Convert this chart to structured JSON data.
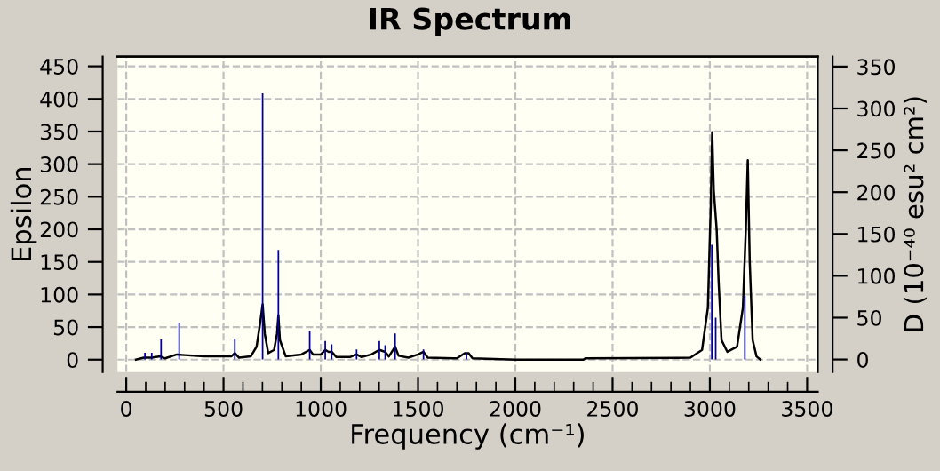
{
  "chart_data": {
    "type": "line",
    "title": "IR Spectrum",
    "xlabel": "Frequency (cm⁻¹)",
    "ylabel": "Epsilon",
    "y2label": "D (10⁻⁴⁰ esu² cm²)",
    "xlim": [
      -45,
      3555
    ],
    "ylim": [
      -19,
      465
    ],
    "y2lim": [
      -15,
      362
    ],
    "xticks": [
      0,
      {
        "value": 100,
        "label": null
      },
      {
        "value": 200,
        "label": null
      },
      {
        "value": 300,
        "label": null
      },
      {
        "value": 400,
        "label": null
      },
      500,
      {
        "value": 600,
        "label": null
      },
      {
        "value": 700,
        "label": null
      },
      {
        "value": 800,
        "label": null
      },
      {
        "value": 900,
        "label": null
      },
      1000,
      {
        "value": 1100,
        "label": null
      },
      {
        "value": 1200,
        "label": null
      },
      {
        "value": 1300,
        "label": null
      },
      {
        "value": 1400,
        "label": null
      },
      1500,
      {
        "value": 1600,
        "label": null
      },
      {
        "value": 1700,
        "label": null
      },
      {
        "value": 1800,
        "label": null
      },
      {
        "value": 1900,
        "label": null
      },
      2000,
      {
        "value": 2100,
        "label": null
      },
      {
        "value": 2200,
        "label": null
      },
      {
        "value": 2300,
        "label": null
      },
      {
        "value": 2400,
        "label": null
      },
      2500,
      {
        "value": 2600,
        "label": null
      },
      {
        "value": 2700,
        "label": null
      },
      {
        "value": 2800,
        "label": null
      },
      {
        "value": 2900,
        "label": null
      },
      3000,
      {
        "value": 3100,
        "label": null
      },
      {
        "value": 3200,
        "label": null
      },
      {
        "value": 3300,
        "label": null
      },
      {
        "value": 3400,
        "label": null
      },
      3500
    ],
    "yticks": [
      0,
      50,
      100,
      150,
      200,
      250,
      300,
      350,
      400,
      450
    ],
    "y2ticks": [
      0,
      50,
      100,
      150,
      200,
      250,
      300,
      350
    ],
    "grid": true,
    "series": [
      {
        "color": "#000000",
        "x": [
          50,
          90,
          130,
          175,
          200,
          260,
          300,
          400,
          540,
          558,
          580,
          640,
          670,
          690,
          701,
          712,
          730,
          760,
          775,
          782,
          790,
          820,
          900,
          943,
          960,
          1000,
          1023,
          1040,
          1056,
          1080,
          1150,
          1184,
          1210,
          1260,
          1301,
          1331,
          1350,
          1382,
          1400,
          1450,
          1500,
          1528,
          1550,
          1700,
          1740,
          1760,
          1780,
          2000,
          2350,
          2360,
          2900,
          2960,
          2990,
          3005,
          3012,
          3020,
          3035,
          3045,
          3060,
          3090,
          3140,
          3170,
          3185,
          3195,
          3205,
          3220,
          3240,
          3260
        ],
        "values": [
          0,
          3,
          3,
          5,
          2,
          8,
          7,
          5,
          5,
          10,
          3,
          5,
          20,
          60,
          85,
          40,
          10,
          15,
          40,
          68,
          30,
          5,
          8,
          15,
          8,
          8,
          15,
          12,
          12,
          4,
          4,
          8,
          4,
          8,
          15,
          12,
          5,
          20,
          6,
          3,
          8,
          12,
          3,
          2,
          10,
          10,
          2,
          0,
          0,
          2,
          3,
          15,
          80,
          240,
          349,
          260,
          200,
          120,
          30,
          12,
          20,
          80,
          200,
          306,
          150,
          30,
          5,
          0
        ]
      },
      {
        "type": "bar",
        "axis": "y2",
        "color": "#000099",
        "x": [
          96,
          131,
          179,
          272,
          558,
          701,
          782,
          943,
          1023,
          1056,
          1184,
          1301,
          1331,
          1382,
          1528,
          1749,
          3010,
          3030,
          3180
        ],
        "values": [
          8,
          8,
          24,
          44,
          25,
          318,
          131,
          34,
          22,
          18,
          12,
          22,
          17,
          31,
          12,
          8,
          137,
          50,
          76
        ]
      }
    ]
  }
}
